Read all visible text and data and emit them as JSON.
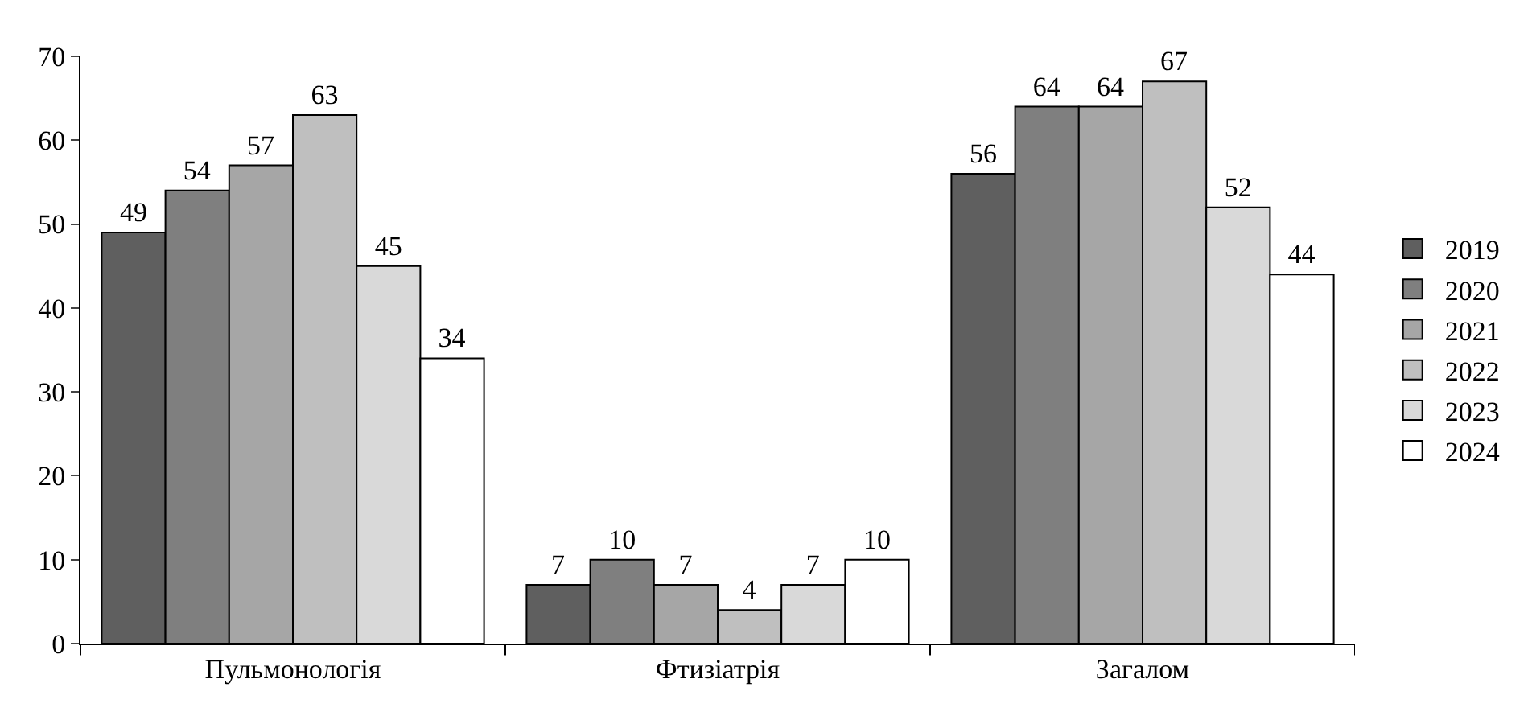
{
  "chart_data": {
    "type": "bar",
    "categories": [
      "Пульмонологія",
      "Фтизіатрія",
      "Загалом"
    ],
    "series": [
      {
        "name": "2019",
        "color": "#5f5f5f",
        "values": [
          49,
          7,
          56
        ]
      },
      {
        "name": "2020",
        "color": "#7f7f7f",
        "values": [
          54,
          10,
          64
        ]
      },
      {
        "name": "2021",
        "color": "#a6a6a6",
        "values": [
          57,
          7,
          64
        ]
      },
      {
        "name": "2022",
        "color": "#bfbfbf",
        "values": [
          63,
          4,
          67
        ]
      },
      {
        "name": "2023",
        "color": "#d9d9d9",
        "values": [
          45,
          7,
          52
        ]
      },
      {
        "name": "2024",
        "color": "#ffffff",
        "values": [
          34,
          10,
          44
        ]
      }
    ],
    "ylim": [
      0,
      70
    ],
    "yticks": [
      0,
      10,
      20,
      30,
      40,
      50,
      60,
      70
    ],
    "grid": false,
    "legend": "right",
    "data_labels": true
  }
}
